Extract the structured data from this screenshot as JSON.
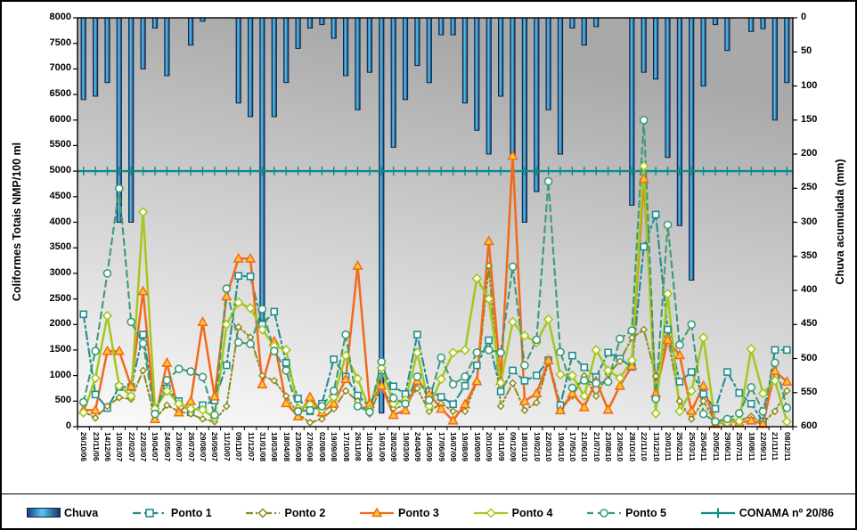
{
  "chart_data": {
    "type": "combo-bar-line",
    "title": "",
    "ylabel_left": "Coliformes Totais NMP/100 ml",
    "ylabel_right": "Chuva acumulada (mm)",
    "y_left": {
      "min": 0,
      "max": 8000,
      "step": 500
    },
    "y_right": {
      "min": 0,
      "max": 600,
      "step": 50,
      "inverted": true
    },
    "grid": "off",
    "legend_position": "bottom",
    "categories": [
      "26/10/06",
      "23/11/06",
      "14/12/06",
      "10/01/07",
      "22/02/07",
      "22/03/07",
      "19/04/07",
      "24/05/07",
      "23/06/07",
      "26/07/07",
      "29/08/07",
      "26/09/07",
      "11/10/07",
      "09/11/07",
      "11/12/07",
      "31/01/08",
      "18/03/08",
      "18/04/08",
      "23/05/08",
      "27/06/08",
      "02/08/08",
      "19/09/08",
      "17/10/08",
      "26/11/08",
      "10/12/08",
      "16/01/09",
      "28/02/09",
      "19/03/09",
      "24/04/09",
      "14/05/09",
      "17/06/09",
      "16/07/09",
      "19/08/09",
      "16/09/09",
      "20/10/09",
      "16/11/09",
      "09/12/09",
      "18/01/10",
      "19/02/10",
      "22/03/10",
      "19/04/10",
      "17/05/10",
      "21/06/10",
      "21/07/10",
      "23/08/10",
      "23/09/10",
      "28/10/10",
      "22/11/10",
      "13/12/10",
      "20/01/11",
      "25/02/11",
      "25/03/11",
      "25/04/11",
      "20/05/11",
      "29/06/11",
      "25/07/11",
      "18/08/11",
      "22/09/11",
      "21/11/11",
      "08/12/11"
    ],
    "rain": {
      "name": "Chuva",
      "type": "bar",
      "axis": "right",
      "color_light": "#57c7f2",
      "color_dark": "#173460",
      "values": [
        120,
        115,
        95,
        300,
        300,
        75,
        15,
        85,
        0,
        40,
        5,
        0,
        0,
        125,
        145,
        450,
        145,
        95,
        45,
        15,
        10,
        30,
        85,
        135,
        80,
        580,
        190,
        120,
        70,
        95,
        25,
        25,
        125,
        165,
        200,
        115,
        205,
        300,
        255,
        135,
        200,
        15,
        40,
        13,
        0,
        0,
        275,
        80,
        90,
        205,
        305,
        385,
        100,
        10,
        48,
        0,
        20,
        16,
        150,
        95
      ]
    },
    "series": [
      {
        "name": "Ponto 1",
        "color": "#1e8e8e",
        "dash": "9 4 2.5 4",
        "width": 2.1,
        "marker": "square",
        "values": [
          2200,
          630,
          365,
          775,
          775,
          1800,
          350,
          750,
          500,
          280,
          420,
          510,
          1200,
          2950,
          2940,
          2000,
          2250,
          1250,
          550,
          300,
          450,
          1320,
          980,
          610,
          400,
          1100,
          790,
          640,
          1800,
          690,
          580,
          440,
          800,
          1200,
          1690,
          690,
          1100,
          900,
          1000,
          1300,
          420,
          1390,
          1160,
          970,
          1450,
          1330,
          1170,
          3520,
          4150,
          1900,
          880,
          1070,
          640,
          350,
          1070,
          660,
          450,
          100,
          1500,
          1500
        ]
      },
      {
        "name": "Ponto 2",
        "color": "#8a8a1f",
        "dash": "8 3 2 3 2 3",
        "width": 2,
        "marker": "diamond-small",
        "values": [
          300,
          170,
          400,
          570,
          540,
          1100,
          150,
          420,
          300,
          250,
          150,
          100,
          400,
          1950,
          1750,
          1000,
          900,
          600,
          250,
          80,
          150,
          350,
          700,
          500,
          250,
          800,
          350,
          420,
          750,
          300,
          450,
          300,
          300,
          880,
          3150,
          400,
          850,
          320,
          470,
          1250,
          320,
          600,
          990,
          600,
          1030,
          1280,
          1740,
          1900,
          990,
          1760,
          500,
          150,
          500,
          100,
          150,
          120,
          200,
          80,
          300,
          700
        ]
      },
      {
        "name": "Ponto 3",
        "color": "#f2691c",
        "dash": "",
        "width": 2.5,
        "marker": "triangle",
        "marker_fill": "#ffc928",
        "values": [
          330,
          320,
          1480,
          1480,
          790,
          2650,
          150,
          1250,
          280,
          500,
          2050,
          590,
          2550,
          3290,
          3290,
          830,
          1670,
          460,
          200,
          580,
          280,
          450,
          930,
          3150,
          450,
          800,
          230,
          320,
          900,
          640,
          350,
          120,
          440,
          890,
          3630,
          900,
          5300,
          500,
          650,
          1300,
          320,
          650,
          380,
          900,
          330,
          800,
          1190,
          4850,
          650,
          1700,
          1400,
          310,
          800,
          50,
          100,
          80,
          120,
          50,
          1090,
          880
        ]
      },
      {
        "name": "Ponto 4",
        "color": "#a3c81e",
        "dash": "",
        "width": 2.5,
        "marker": "diamond",
        "values": [
          275,
          950,
          2170,
          800,
          600,
          4200,
          350,
          700,
          450,
          350,
          330,
          170,
          2000,
          2430,
          2320,
          1900,
          1580,
          1500,
          350,
          430,
          330,
          580,
          1390,
          940,
          330,
          1150,
          450,
          520,
          1450,
          400,
          930,
          1450,
          1500,
          2900,
          2500,
          860,
          2050,
          1780,
          1650,
          2100,
          1020,
          1000,
          600,
          1500,
          1100,
          950,
          1300,
          5100,
          260,
          2600,
          300,
          700,
          1740,
          80,
          80,
          110,
          1520,
          650,
          900,
          100
        ]
      },
      {
        "name": "Ponto 5",
        "color": "#3d9b72",
        "dash": "7 5",
        "width": 2.1,
        "marker": "circle",
        "values": [
          480,
          1480,
          3000,
          4660,
          2050,
          1630,
          250,
          910,
          1130,
          1080,
          970,
          230,
          2700,
          1650,
          1620,
          2300,
          1480,
          1100,
          300,
          320,
          400,
          700,
          1800,
          400,
          290,
          1270,
          560,
          450,
          980,
          520,
          1350,
          830,
          980,
          1450,
          1500,
          1450,
          3130,
          1200,
          1700,
          4800,
          1460,
          760,
          905,
          850,
          880,
          1720,
          1880,
          6000,
          545,
          3950,
          1600,
          2000,
          250,
          100,
          150,
          260,
          770,
          300,
          1250,
          370
        ]
      }
    ],
    "conama": {
      "name": "CONAMA nº 20/86",
      "color": "#0d8b8b",
      "value": 5000
    },
    "legend": [
      "Chuva",
      "Ponto 1",
      "Ponto 2",
      "Ponto 3",
      "Ponto 4",
      "Ponto 5",
      "CONAMA nº 20/86"
    ]
  }
}
